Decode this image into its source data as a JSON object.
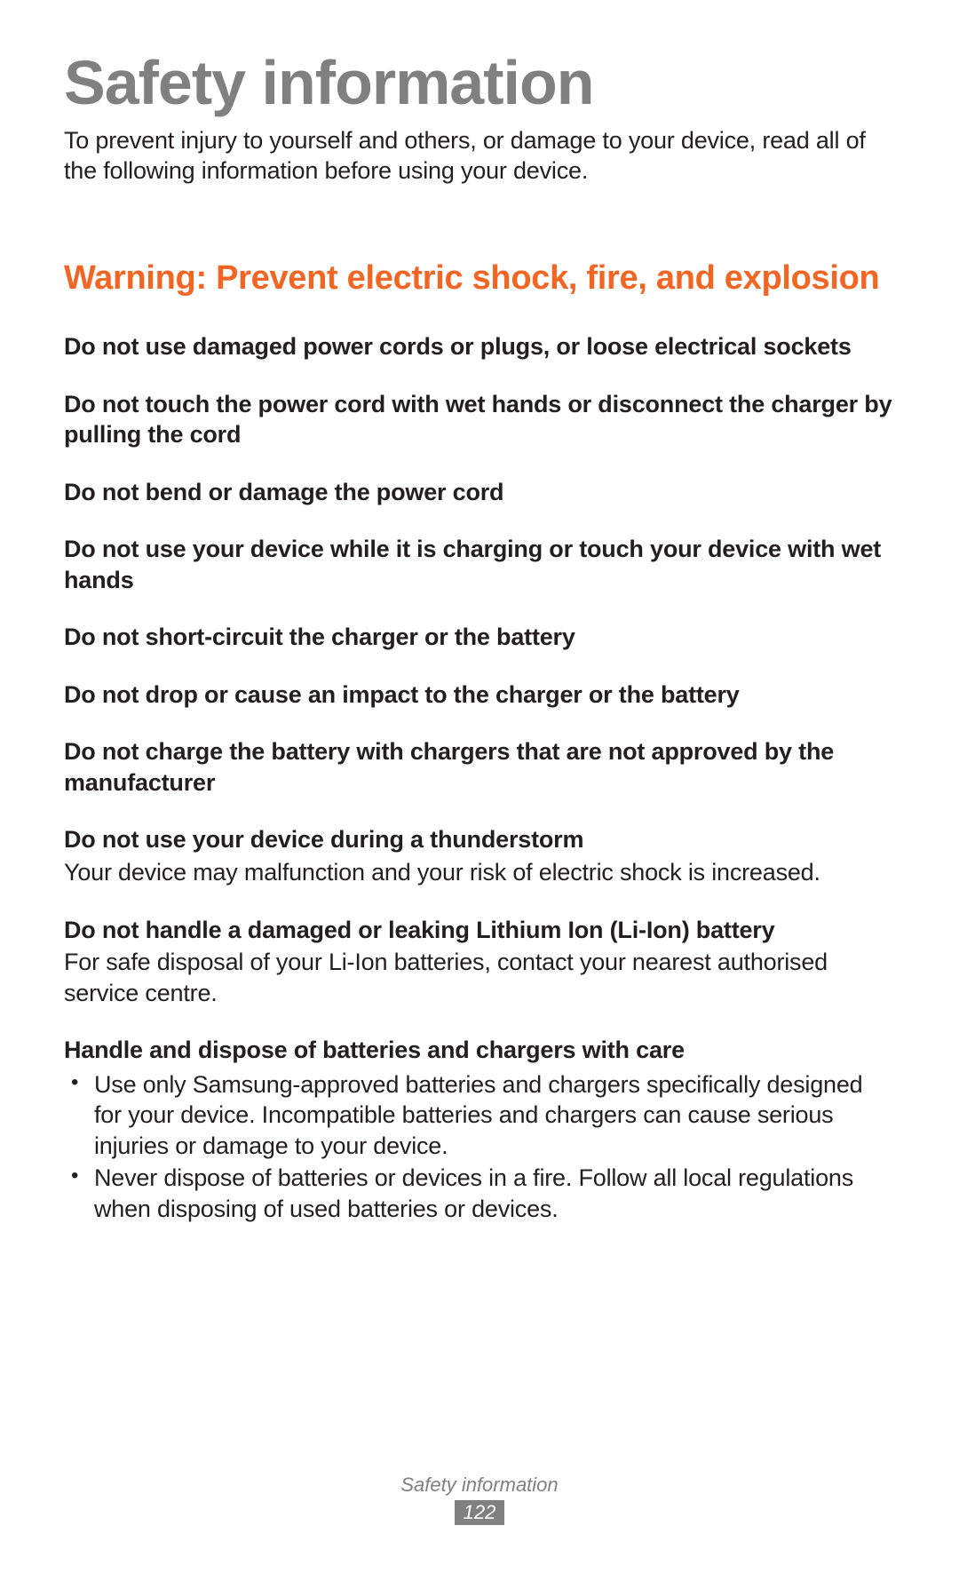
{
  "title": "Safety information",
  "intro": "To prevent injury to yourself and others, or damage to your device, read all of the following information before using your device.",
  "warning_heading": "Warning: Prevent electric shock, fire, and explosion",
  "items": [
    {
      "heading": "Do not use damaged power cords or plugs, or loose electrical sockets"
    },
    {
      "heading": "Do not touch the power cord with wet hands or disconnect the charger by pulling the cord"
    },
    {
      "heading": "Do not bend or damage the power cord"
    },
    {
      "heading": "Do not use your device while it is charging or touch your device with wet hands"
    },
    {
      "heading": "Do not short-circuit the charger or the battery"
    },
    {
      "heading": "Do not drop or cause an impact to the charger or the battery"
    },
    {
      "heading": "Do not charge the battery with chargers that are not approved by the manufacturer"
    },
    {
      "heading": "Do not use your device during a thunderstorm",
      "body": "Your device may malfunction and your risk of electric shock is increased."
    },
    {
      "heading": "Do not handle a damaged or leaking Lithium Ion (Li-Ion) battery",
      "body": "For safe disposal of your Li-Ion batteries, contact your nearest authorised service centre."
    },
    {
      "heading": "Handle and dispose of batteries and chargers with care",
      "bullets": [
        "Use only Samsung-approved batteries and chargers specifically designed for your device. Incompatible batteries and chargers can cause serious injuries or damage to your device.",
        "Never dispose of batteries or devices in a fire. Follow all local regulations when disposing of used batteries or devices."
      ]
    }
  ],
  "footer": {
    "section": "Safety information",
    "page": "122"
  },
  "colors": {
    "title": "#808080",
    "warning": "#f26522",
    "text": "#231f20",
    "page_bg": "#808080",
    "page_fg": "#ffffff"
  }
}
